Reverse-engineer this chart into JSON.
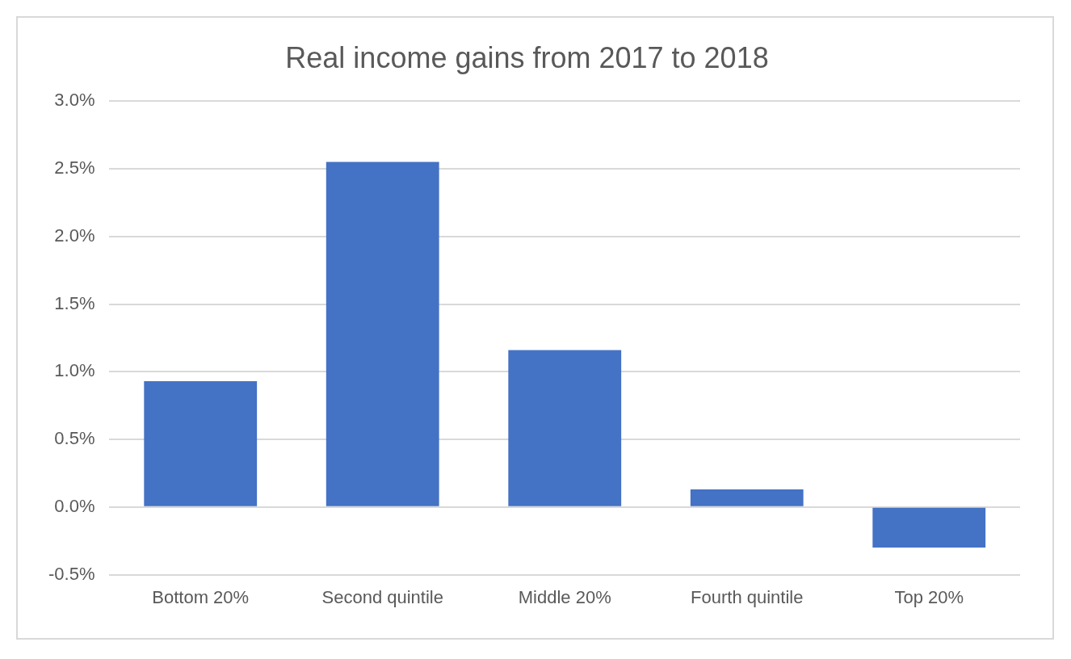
{
  "chart_data": {
    "type": "bar",
    "title": "Real income gains from 2017 to 2018",
    "categories": [
      "Bottom 20%",
      "Second quintile",
      "Middle 20%",
      "Fourth quintile",
      "Top 20%"
    ],
    "values": [
      0.93,
      2.55,
      1.16,
      0.13,
      -0.3
    ],
    "color": "#4472c4",
    "ylim": [
      -0.5,
      3.0
    ],
    "yticks": [
      {
        "value": -0.5,
        "label": "-0.5%"
      },
      {
        "value": 0,
        "label": "0.0%"
      },
      {
        "value": 0.5,
        "label": "0.5%"
      },
      {
        "value": 1,
        "label": "1.0%"
      },
      {
        "value": 1.5,
        "label": "1.5%"
      },
      {
        "value": 2,
        "label": "2.0%"
      },
      {
        "value": 2.5,
        "label": "2.5%"
      },
      {
        "value": 3,
        "label": "3.0%"
      }
    ],
    "grid": "y",
    "legend": false
  }
}
